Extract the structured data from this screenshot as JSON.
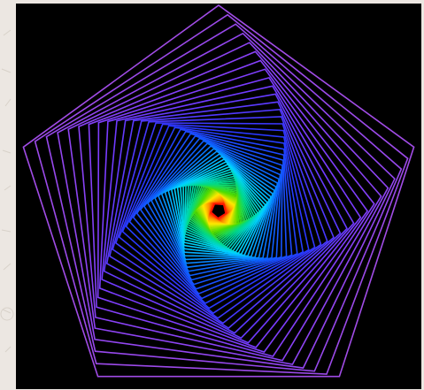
{
  "artwork": {
    "kind": "rotating-pentagon-spiral",
    "background_color": "#000000",
    "backdrop_color": "#ece7e2",
    "polygon_sides": 5,
    "layer_count": 72,
    "rotation_per_layer_deg": 2.6,
    "shrink_per_layer": 0.955,
    "stroke_colors": [
      "#ff1400",
      "#ff8a00",
      "#ffe800",
      "#4ddc00",
      "#00d98a",
      "#00d4ff",
      "#0b63ff",
      "#2a37ff",
      "#7b3cff",
      "#a14ce6"
    ]
  }
}
